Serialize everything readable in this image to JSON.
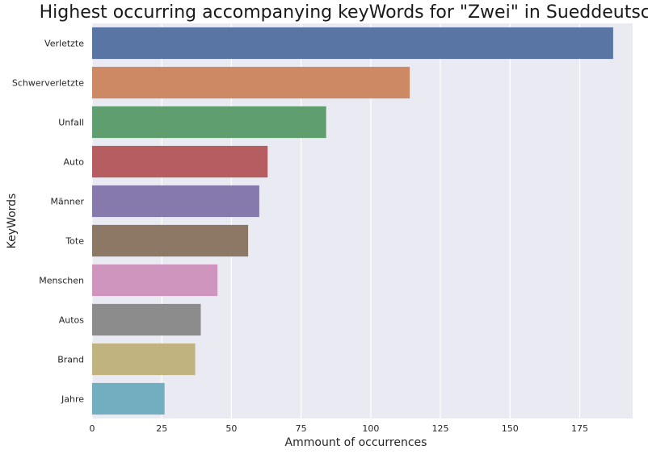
{
  "chart_data": {
    "type": "bar",
    "orientation": "horizontal",
    "title": "Highest occurring accompanying keyWords for \"Zwei\" in Sueddeutsche",
    "xlabel": "Ammount of occurrences",
    "ylabel": "KeyWords",
    "xlim": [
      0,
      194
    ],
    "xticks": [
      0,
      25,
      50,
      75,
      100,
      125,
      150,
      175
    ],
    "grid": true,
    "categories": [
      "Verletzte",
      "Schwerverletzte",
      "Unfall",
      "Auto",
      "Männer",
      "Tote",
      "Menschen",
      "Autos",
      "Brand",
      "Jahre"
    ],
    "values": [
      187,
      114,
      84,
      63,
      60,
      56,
      45,
      39,
      37,
      26
    ],
    "colors": [
      "#5975a4",
      "#cc8963",
      "#5f9e6e",
      "#b55d60",
      "#857aab",
      "#8d7866",
      "#d095bf",
      "#8c8c8c",
      "#c1b37f",
      "#71aec0"
    ],
    "background_color": "#eaeaf2",
    "grid_color": "#ffffff"
  }
}
